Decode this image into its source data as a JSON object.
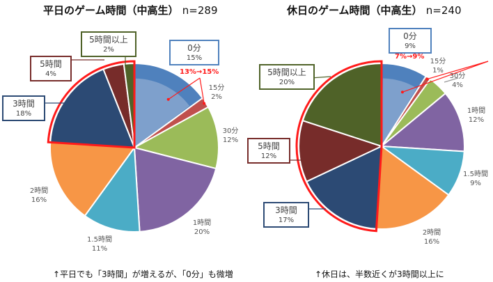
{
  "chart_data": [
    {
      "type": "pie",
      "title": "平日のゲーム時間（中高生）",
      "n_label": "n=289",
      "categories": [
        "0分",
        "15分",
        "30分",
        "1時間",
        "1.5時間",
        "2時間",
        "3時間",
        "5時間",
        "5時間以上"
      ],
      "values": [
        15,
        2,
        12,
        20,
        11,
        16,
        18,
        4,
        2
      ],
      "value_labels": [
        "15%",
        "2%",
        "12%",
        "20%",
        "11%",
        "16%",
        "18%",
        "4%",
        "2%"
      ],
      "colors": [
        "#4f81bd",
        "#c0504d",
        "#9bbb59",
        "#8064a2",
        "#4bacc6",
        "#f79646",
        "#2c4a74",
        "#772c2a",
        "#4f6228"
      ],
      "annotation": "13%→15%",
      "highlight_from": "3時間",
      "caption": "↑平日でも「3時間」が増えるが、「0分」も微増"
    },
    {
      "type": "pie",
      "title": "休日のゲーム時間（中高生）",
      "n_label": "n=240",
      "categories": [
        "0分",
        "15分",
        "30分",
        "1時間",
        "1.5時間",
        "2時間",
        "3時間",
        "5時間",
        "5時間以上"
      ],
      "values": [
        9,
        1,
        4,
        12,
        9,
        16,
        17,
        12,
        20
      ],
      "value_labels": [
        "9%",
        "1%",
        "4%",
        "12%",
        "9%",
        "16%",
        "17%",
        "12%",
        "20%"
      ],
      "colors": [
        "#4f81bd",
        "#c0504d",
        "#9bbb59",
        "#8064a2",
        "#4bacc6",
        "#f79646",
        "#2c4a74",
        "#772c2a",
        "#4f6228"
      ],
      "annotation": "7%→9%",
      "highlight_from": "3時間",
      "caption": "↑休日は、半数近くが3時間以上に"
    }
  ]
}
